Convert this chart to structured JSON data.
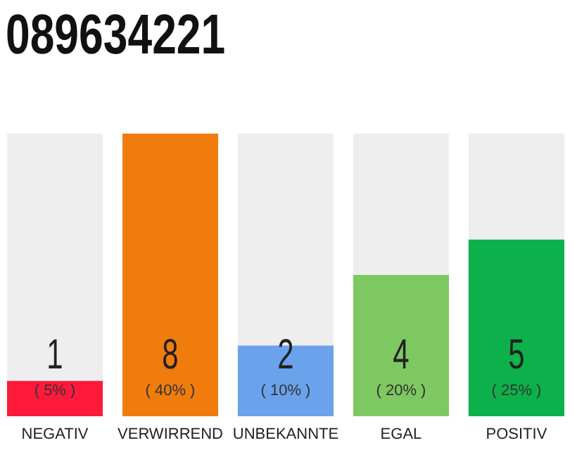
{
  "chart_data": {
    "type": "bar",
    "title": "089634221",
    "categories": [
      "NEGATIV",
      "VERWIRREND",
      "UNBEKANNTE",
      "EGAL",
      "POSITIV"
    ],
    "values": [
      5,
      40,
      10,
      20,
      25
    ],
    "colors": [
      "#ff1a3c",
      "#f07c0e",
      "#6aa2ec",
      "#7ec862",
      "#0db14b"
    ],
    "tick_labels": "x",
    "value_labels": [
      "( 5% )",
      "( 40% )",
      "( 10% )",
      "( 20% )",
      "( 25% )"
    ],
    "annotations": [
      "1",
      "8",
      "2",
      "4",
      "5"
    ]
  }
}
